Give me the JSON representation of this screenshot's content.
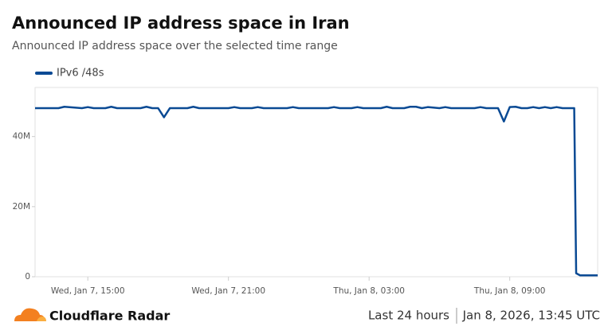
{
  "chart_data": {
    "type": "line",
    "title": "Announced IP address space in Iran",
    "subtitle": "Announced IP address space over the selected time range",
    "x": [
      "Jan 7, 12:45",
      "Jan 7, 13:45",
      "Jan 7, 14:00",
      "Jan 7, 14:45",
      "Jan 7, 15:00",
      "Jan 7, 15:15",
      "Jan 7, 15:45",
      "Jan 7, 16:00",
      "Jan 7, 16:15",
      "Jan 7, 17:15",
      "Jan 7, 17:30",
      "Jan 7, 17:45",
      "Jan 7, 18:00",
      "Jan 7, 18:15",
      "Jan 7, 18:30",
      "Jan 7, 19:15",
      "Jan 7, 19:30",
      "Jan 7, 19:45",
      "Jan 7, 21:00",
      "Jan 7, 21:15",
      "Jan 7, 21:30",
      "Jan 7, 22:00",
      "Jan 7, 22:15",
      "Jan 7, 22:30",
      "Jan 7, 23:30",
      "Jan 7, 23:45",
      "Jan 8, 00:00",
      "Jan 8, 01:15",
      "Jan 8, 01:30",
      "Jan 8, 01:45",
      "Jan 8, 02:15",
      "Jan 8, 02:30",
      "Jan 8, 02:45",
      "Jan 8, 03:30",
      "Jan 8, 03:45",
      "Jan 8, 04:00",
      "Jan 8, 04:30",
      "Jan 8, 04:45",
      "Jan 8, 05:00",
      "Jan 8, 05:15",
      "Jan 8, 05:30",
      "Jan 8, 06:00",
      "Jan 8, 06:15",
      "Jan 8, 06:30",
      "Jan 8, 07:30",
      "Jan 8, 07:45",
      "Jan 8, 08:00",
      "Jan 8, 08:30",
      "Jan 8, 08:45",
      "Jan 8, 09:00",
      "Jan 8, 09:15",
      "Jan 8, 09:30",
      "Jan 8, 09:45",
      "Jan 8, 10:00",
      "Jan 8, 10:15",
      "Jan 8, 10:30",
      "Jan 8, 10:45",
      "Jan 8, 11:00",
      "Jan 8, 11:15",
      "Jan 8, 11:45",
      "Jan 8, 11:50",
      "Jan 8, 12:00",
      "Jan 8, 12:45"
    ],
    "series": [
      {
        "name": "IPv6 /48s",
        "color": "#0a4a94",
        "values": [
          48100000,
          48100000,
          48500000,
          48100000,
          48400000,
          48100000,
          48100000,
          48500000,
          48100000,
          48100000,
          48500000,
          48100000,
          48100000,
          45500000,
          48100000,
          48100000,
          48500000,
          48100000,
          48100000,
          48400000,
          48100000,
          48100000,
          48400000,
          48100000,
          48100000,
          48400000,
          48100000,
          48100000,
          48400000,
          48100000,
          48100000,
          48400000,
          48100000,
          48100000,
          48500000,
          48100000,
          48100000,
          48500000,
          48500000,
          48100000,
          48400000,
          48100000,
          48400000,
          48100000,
          48100000,
          48400000,
          48100000,
          48100000,
          44300000,
          48400000,
          48500000,
          48100000,
          48100000,
          48400000,
          48100000,
          48400000,
          48100000,
          48400000,
          48100000,
          48100000,
          1000000,
          400000,
          400000
        ]
      }
    ],
    "xlim": [
      "Jan 7, 12:45",
      "Jan 8, 12:45"
    ],
    "xticks": [
      {
        "value": "Jan 7, 15:00",
        "label": "Wed, Jan 7, 15:00"
      },
      {
        "value": "Jan 7, 21:00",
        "label": "Wed, Jan 7, 21:00"
      },
      {
        "value": "Jan 8, 03:00",
        "label": "Thu, Jan 8, 03:00"
      },
      {
        "value": "Jan 8, 09:00",
        "label": "Thu, Jan 8, 09:00"
      }
    ],
    "ylim": [
      0,
      54000000
    ],
    "yticks": [
      0,
      {
        "value": 20000000,
        "label": "20M"
      },
      {
        "value": 40000000,
        "label": "40M"
      }
    ],
    "grid": false
  },
  "footer": {
    "brand": "Cloudflare Radar",
    "range": "Last 24 hours",
    "timestamp": "Jan 8, 2026, 13:45 UTC"
  }
}
